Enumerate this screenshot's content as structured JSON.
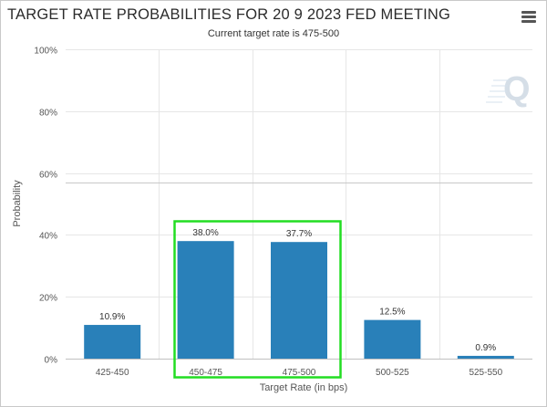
{
  "header": {
    "title": "TARGET RATE PROBABILITIES FOR 20 9 2023 FED MEETING",
    "subtitle": "Current target rate is 475-500"
  },
  "menu_icon": "hamburger-menu-icon",
  "watermark_icon": "quikstrike-q-logo-icon",
  "colors": {
    "bar": "#2980b9",
    "highlight": "#22dd22",
    "grid": "#e6e6e6",
    "axis_text": "#555555"
  },
  "chart_data": {
    "type": "bar",
    "title": "TARGET RATE PROBABILITIES FOR 20 9 2023 FED MEETING",
    "subtitle": "Current target rate is 475-500",
    "xlabel": "Target Rate (in bps)",
    "ylabel": "Probability",
    "categories": [
      "425-450",
      "450-475",
      "475-500",
      "500-525",
      "525-550"
    ],
    "values": [
      10.9,
      38.0,
      37.7,
      12.5,
      0.9
    ],
    "data_labels": [
      "10.9%",
      "38.0%",
      "37.7%",
      "12.5%",
      "0.9%"
    ],
    "ylim": [
      0,
      100
    ],
    "yticks": [
      0,
      20,
      40,
      60,
      80,
      100
    ],
    "ytick_labels": [
      "0%",
      "20%",
      "40%",
      "60%",
      "80%",
      "100%"
    ],
    "grid": true,
    "legend": "none",
    "highlighted_categories": [
      "450-475",
      "475-500"
    ]
  }
}
